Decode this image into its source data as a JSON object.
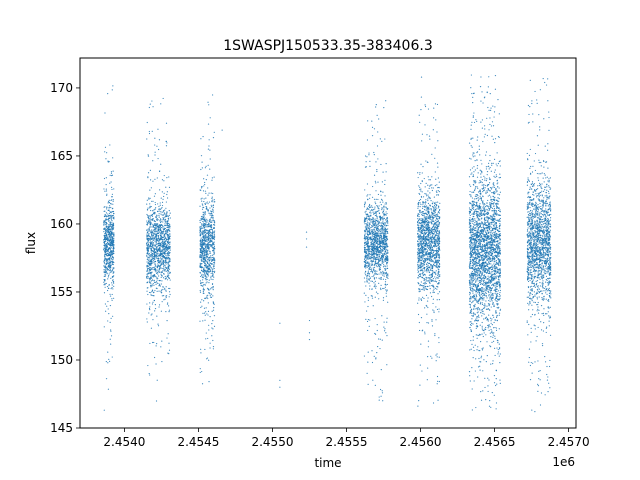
{
  "chart_data": {
    "type": "scatter",
    "title": "1SWASPJ150533.35-383406.3",
    "xlabel": "time",
    "ylabel": "flux",
    "x_offset_label": "1e6",
    "xlim": [
      2.4537,
      2.45705
    ],
    "ylim": [
      145,
      172.2
    ],
    "x_ticks": [
      2.454,
      2.4545,
      2.455,
      2.4555,
      2.456,
      2.4565,
      2.457
    ],
    "x_tick_labels": [
      "2.4540",
      "2.4545",
      "2.4550",
      "2.4555",
      "2.4560",
      "2.4565",
      "2.4570"
    ],
    "y_ticks": [
      145,
      150,
      155,
      160,
      165,
      170
    ],
    "y_tick_labels": [
      "145",
      "150",
      "155",
      "160",
      "165",
      "170"
    ],
    "grid": false,
    "legend": "none",
    "colors": {
      "points": "#1f77b4"
    },
    "series": [
      {
        "values_note": "",
        "segments": [
          {
            "x_start": 2.45386,
            "x_end": 2.45393,
            "center": 158.5,
            "spread": 1.4,
            "count": 700
          },
          {
            "x_start": 2.45415,
            "x_end": 2.45431,
            "center": 158.3,
            "spread": 1.5,
            "count": 1300
          },
          {
            "x_start": 2.45451,
            "x_end": 2.45461,
            "center": 158.3,
            "spread": 1.6,
            "count": 900
          },
          {
            "x_start": 2.45562,
            "x_end": 2.45578,
            "center": 158.5,
            "spread": 1.4,
            "count": 1300
          },
          {
            "x_start": 2.45598,
            "x_end": 2.45613,
            "center": 158.6,
            "spread": 1.7,
            "count": 1400
          },
          {
            "x_start": 2.45633,
            "x_end": 2.45654,
            "center": 158.0,
            "spread": 2.6,
            "count": 2600
          },
          {
            "x_start": 2.45672,
            "x_end": 2.45688,
            "center": 158.5,
            "spread": 2.2,
            "count": 1600
          }
        ],
        "isolated_points": [
          {
            "x": 2.45466,
            "y": 166.9
          },
          {
            "x": 2.45505,
            "y": 152.7
          },
          {
            "x": 2.45505,
            "y": 148.5
          },
          {
            "x": 2.45505,
            "y": 148.0
          },
          {
            "x": 2.45523,
            "y": 159.4
          },
          {
            "x": 2.45523,
            "y": 158.9
          },
          {
            "x": 2.45523,
            "y": 158.3
          },
          {
            "x": 2.45525,
            "y": 152.9
          },
          {
            "x": 2.45525,
            "y": 152.0
          },
          {
            "x": 2.45525,
            "y": 151.5
          }
        ]
      }
    ]
  }
}
